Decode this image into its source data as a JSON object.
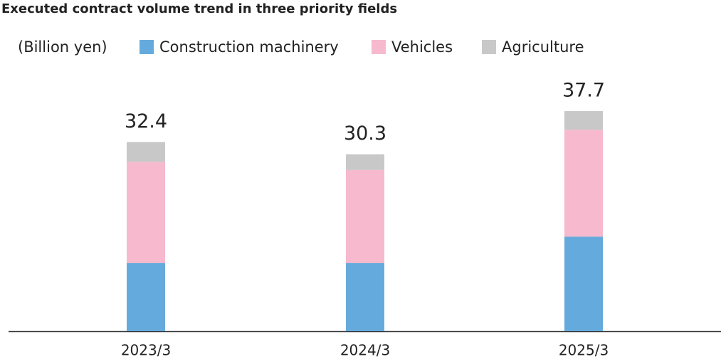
{
  "chart_data": {
    "type": "stacked_bar",
    "title": "Executed contract volume trend in three priority fields",
    "y_label": "(Billion yen)",
    "categories": [
      "2023/3",
      "2024/3",
      "2025/3"
    ],
    "series": [
      {
        "name": "Construction machinery",
        "color": "#65aadc",
        "values": [
          11.7,
          11.7,
          16.2
        ]
      },
      {
        "name": "Vehicles",
        "color": "#f6b9cd",
        "values": [
          17.3,
          15.9,
          18.3
        ]
      },
      {
        "name": "Agriculture",
        "color": "#c8c8c8",
        "values": [
          3.4,
          2.7,
          3.2
        ]
      }
    ],
    "totals": [
      32.4,
      30.3,
      37.7
    ],
    "ylim": [
      0,
      40
    ]
  }
}
